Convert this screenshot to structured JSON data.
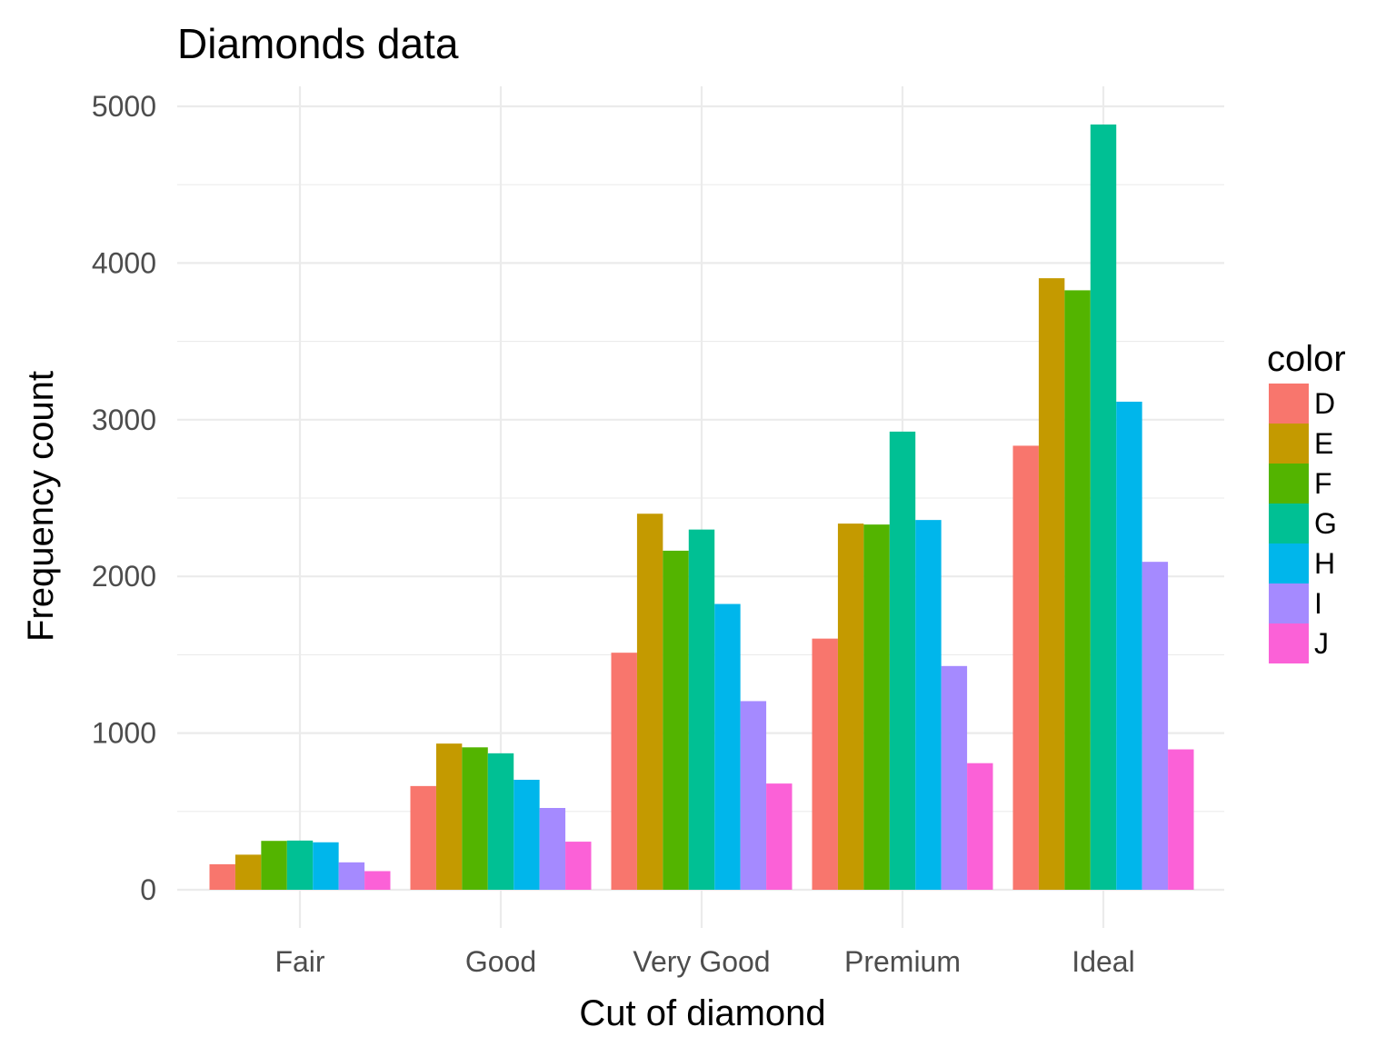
{
  "chart_data": {
    "type": "bar",
    "title": "Diamonds data",
    "xlabel": "Cut of diamond",
    "ylabel": "Frequency count",
    "categories": [
      "Fair",
      "Good",
      "Very Good",
      "Premium",
      "Ideal"
    ],
    "ylim": [
      0,
      5000
    ],
    "yticks": [
      0,
      1000,
      2000,
      3000,
      4000,
      5000
    ],
    "grid": true,
    "legend": {
      "title": "color",
      "placement": "right"
    },
    "series": [
      {
        "name": "D",
        "color": "#F8766D",
        "values": [
          163,
          662,
          1513,
          1603,
          2834
        ]
      },
      {
        "name": "E",
        "color": "#C49A00",
        "values": [
          224,
          933,
          2400,
          2337,
          3903
        ]
      },
      {
        "name": "F",
        "color": "#53B400",
        "values": [
          312,
          909,
          2164,
          2331,
          3826
        ]
      },
      {
        "name": "G",
        "color": "#00C094",
        "values": [
          314,
          871,
          2299,
          2924,
          4884
        ]
      },
      {
        "name": "H",
        "color": "#00B6EB",
        "values": [
          303,
          702,
          1824,
          2360,
          3115
        ]
      },
      {
        "name": "I",
        "color": "#A58AFF",
        "values": [
          175,
          522,
          1204,
          1428,
          2093
        ]
      },
      {
        "name": "J",
        "color": "#FB61D7",
        "values": [
          119,
          307,
          678,
          808,
          896
        ]
      }
    ]
  }
}
